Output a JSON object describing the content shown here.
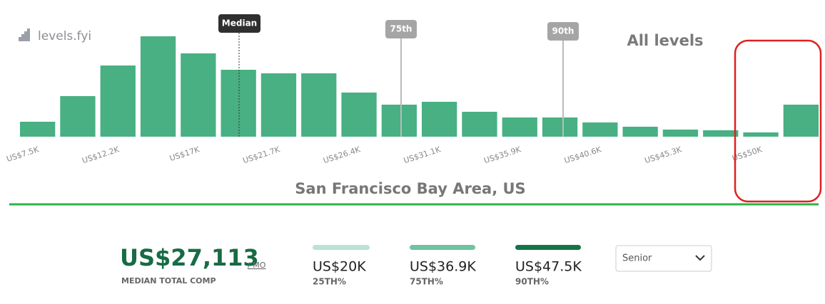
{
  "brand": "levels.fyi",
  "chart_data": {
    "type": "bar",
    "title": "All levels",
    "subtitle": "San Francisco Bay Area, US",
    "categories": [
      "US$7.5K",
      null,
      "US$12.2K",
      null,
      "US$17K",
      null,
      "US$21.7K",
      null,
      "US$26.4K",
      null,
      "US$31.1K",
      null,
      "US$35.9K",
      null,
      "US$40.6K",
      null,
      "US$45.3K",
      null,
      "US$50K",
      null
    ],
    "values": [
      21,
      57,
      100,
      141,
      117,
      94,
      89,
      89,
      62,
      45,
      49,
      35,
      27,
      27,
      20,
      14,
      10,
      9,
      6,
      45
    ],
    "color": "#48b083",
    "markers": [
      "Median",
      "75th",
      "90th"
    ]
  },
  "stats": {
    "median": {
      "value": "US$27,113",
      "unit": "/ MO",
      "label": "MEDIAN TOTAL COMP"
    },
    "percentiles": [
      {
        "value": "US$20K",
        "label": "25TH%",
        "color": "#b9e3d4"
      },
      {
        "value": "US$36.9K",
        "label": "75TH%",
        "color": "#6cc4a0"
      },
      {
        "value": "US$47.5K",
        "label": "90TH%",
        "color": "#167347"
      }
    ]
  },
  "level_select": "Senior"
}
